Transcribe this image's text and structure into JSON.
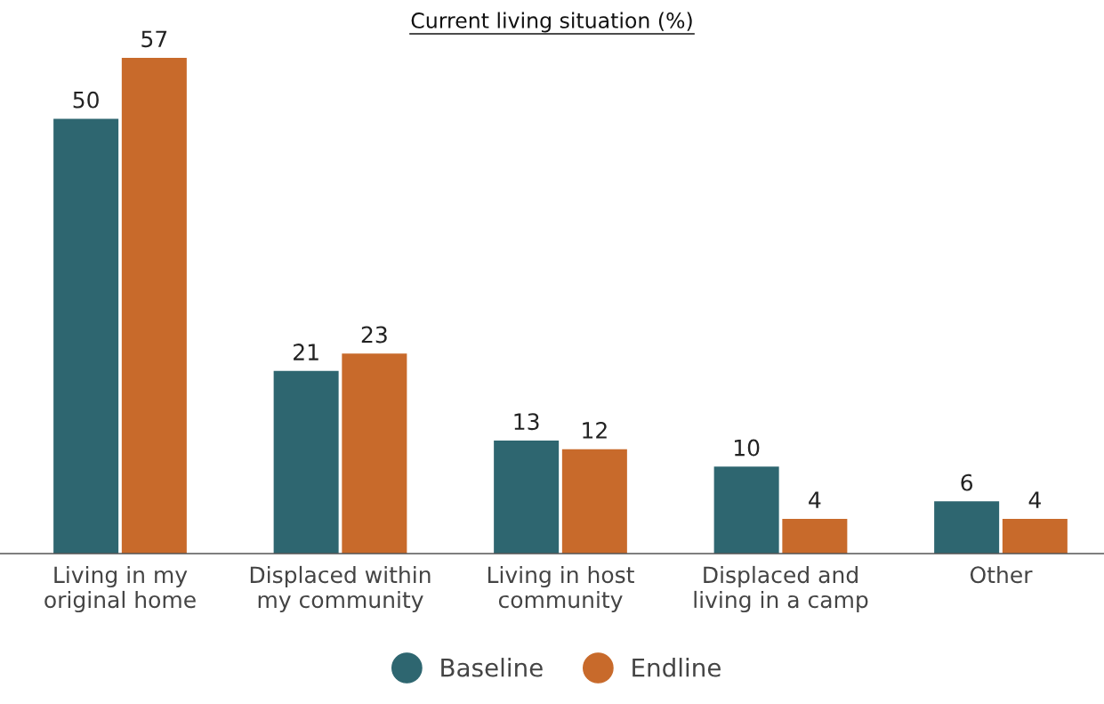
{
  "chart_data": {
    "type": "bar",
    "title": "Current living situation (%)",
    "categories": [
      "Living in my\noriginal home",
      "Displaced within\nmy community",
      "Living in host\ncommunity",
      "Displaced and\nliving in a camp",
      "Other"
    ],
    "series": [
      {
        "name": "Baseline",
        "color": "#2e6670",
        "values": [
          50,
          21,
          13,
          10,
          6
        ]
      },
      {
        "name": "Endline",
        "color": "#c86a2b",
        "values": [
          57,
          23,
          12,
          4,
          4
        ]
      }
    ],
    "data_labels": true,
    "legend": "bottom",
    "grid": false,
    "marker": "circle"
  }
}
